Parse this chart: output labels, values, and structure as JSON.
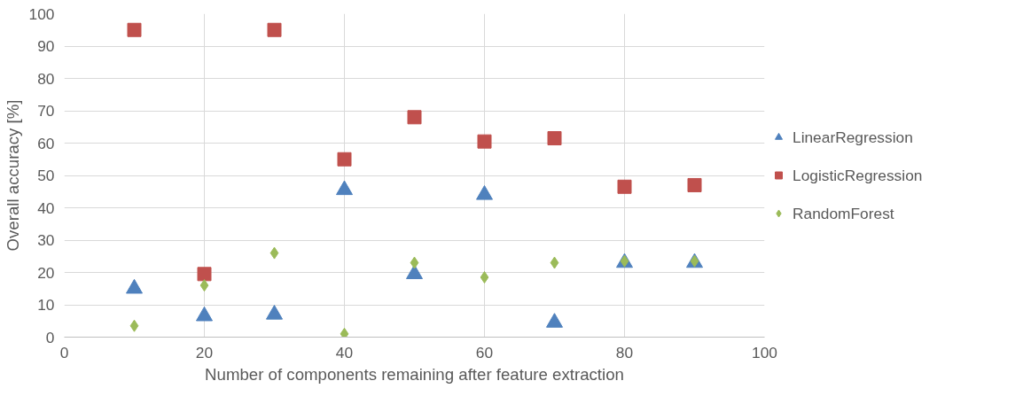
{
  "chart_data": {
    "type": "scatter",
    "xlabel": "Number of components remaining after feature extraction",
    "ylabel": "Overall accuracy [%]",
    "x": [
      10,
      20,
      30,
      40,
      50,
      60,
      70,
      80,
      90
    ],
    "series": [
      {
        "name": "LinearRegression",
        "color": "#4f81bd",
        "marker": "triangle",
        "values": [
          15,
          6.5,
          7,
          45.5,
          19.5,
          44,
          4.5,
          23,
          23
        ]
      },
      {
        "name": "LogisticRegression",
        "color": "#c0504d",
        "marker": "square",
        "values": [
          95,
          19.5,
          95,
          55,
          68,
          60.5,
          61.5,
          46.5,
          47
        ]
      },
      {
        "name": "RandomForest",
        "color": "#9bbb59",
        "marker": "diamond",
        "values": [
          3.5,
          16,
          26,
          1,
          23,
          18.5,
          23,
          23.5,
          23.5
        ]
      }
    ],
    "xlim": [
      0,
      100
    ],
    "xticks": [
      0,
      20,
      40,
      60,
      80,
      100
    ],
    "ylim": [
      0,
      100
    ],
    "yticks": [
      0,
      10,
      20,
      30,
      40,
      50,
      60,
      70,
      80,
      90,
      100
    ],
    "grid": true,
    "legend": "right"
  }
}
